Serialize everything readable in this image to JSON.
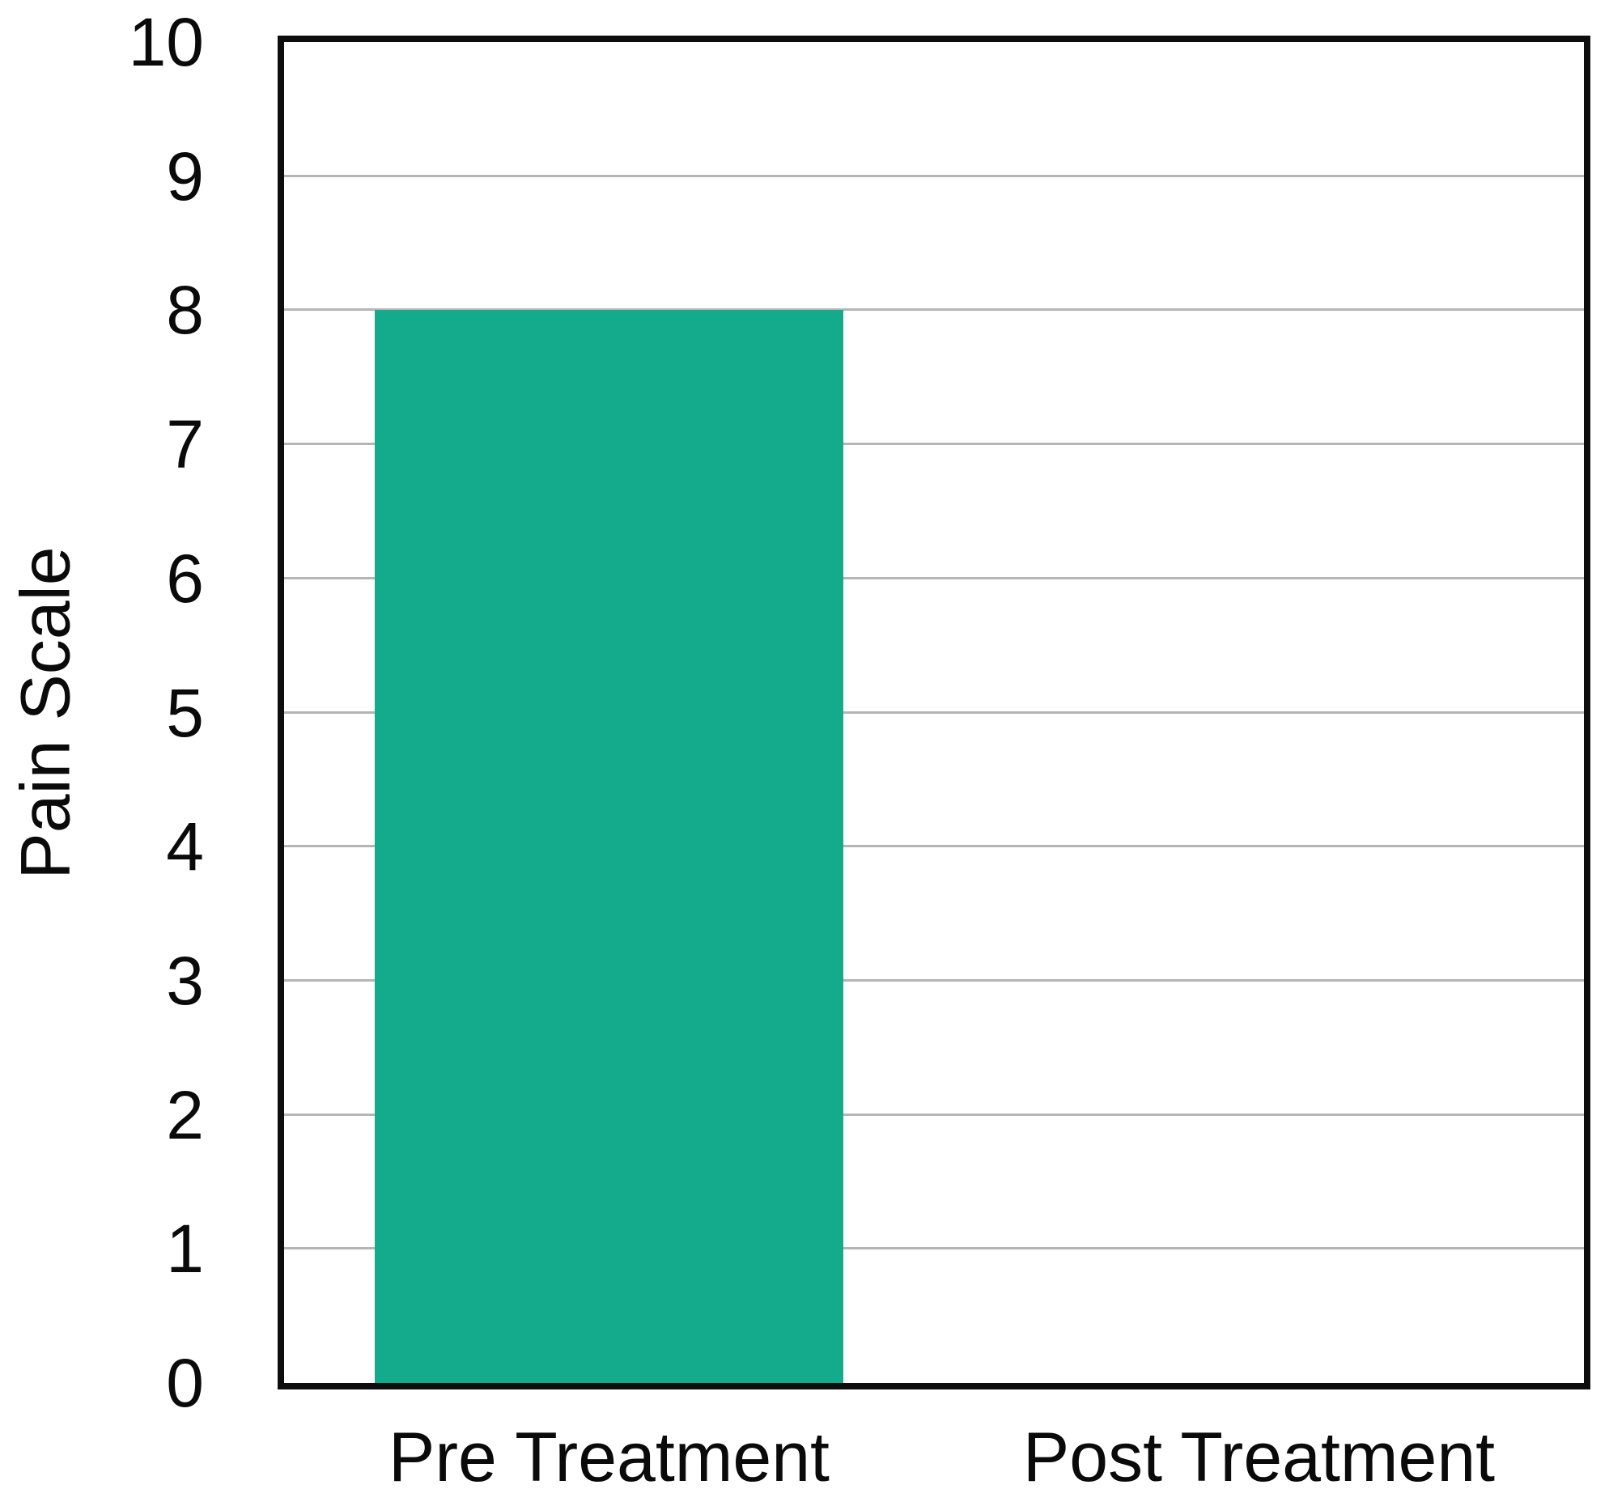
{
  "chart_data": {
    "type": "bar",
    "title": "",
    "categories": [
      "Pre Treatment",
      "Post Treatment"
    ],
    "values": [
      8,
      0
    ],
    "xlabel": "",
    "ylabel": "Pain Scale",
    "ylim": [
      0,
      10
    ],
    "yticks": [
      0,
      1,
      2,
      3,
      4,
      5,
      6,
      7,
      8,
      9,
      10
    ],
    "grid": "horizontal gridlines at each integer, legend none",
    "legend_position": "none",
    "bar_width_fraction": 0.72,
    "colors": {
      "bar": "#14ab8d",
      "gridline": "#b5b5b5",
      "frame": "#0d0d0d",
      "text": "#0a0a0a",
      "background": "#ffffff"
    }
  }
}
